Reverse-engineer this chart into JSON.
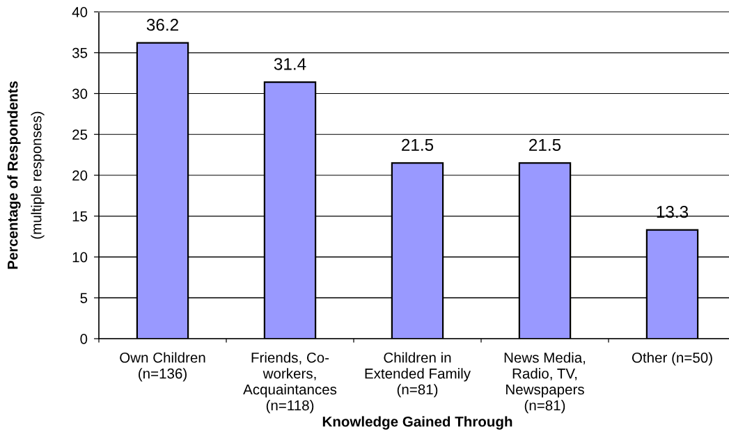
{
  "chart_data": {
    "type": "bar",
    "xlabel": "Knowledge Gained Through",
    "ylabel": "Percentage of Respondents\n(multiple responses)",
    "categories": [
      "Own Children\n(n=136)",
      "Friends, Co-\nworkers,\nAcquaintances\n(n=118)",
      "Children in\nExtended Family\n(n=81)",
      "News Media,\nRadio, TV,\nNewspapers\n(n=81)",
      "Other (n=50)"
    ],
    "values": [
      36.2,
      31.4,
      21.5,
      21.5,
      13.3
    ],
    "color": "#9999ff",
    "ylim": [
      0,
      40
    ],
    "yticks": [
      0,
      5,
      10,
      15,
      20,
      25,
      30,
      35,
      40
    ],
    "grid": "y",
    "data_labels": true
  }
}
